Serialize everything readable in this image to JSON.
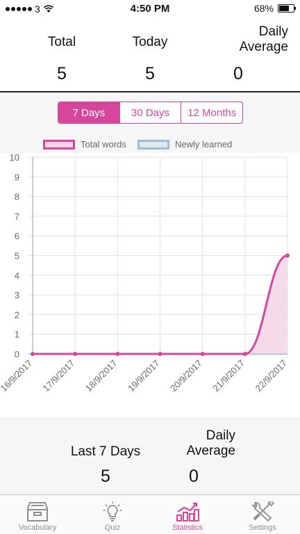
{
  "status_bar": {
    "carrier": "3",
    "time": "4:50 PM",
    "battery": "68%",
    "battery_level": 0.68
  },
  "summary": {
    "total_label": "Total",
    "total_value": "5",
    "today_label": "Today",
    "today_value": "5",
    "daily_avg_label_line1": "Daily",
    "daily_avg_label_line2": "Average",
    "daily_avg_value": "0"
  },
  "range_tabs": {
    "items": [
      "7 Days",
      "30 Days",
      "12 Months"
    ],
    "selected": "7 Days"
  },
  "colors": {
    "accent": "#d4479c",
    "total_fill": "#f3d3e6",
    "newly_border": "#9fbcd0",
    "newly_fill": "#dfe9ef"
  },
  "chart_data": {
    "type": "line",
    "x": [
      "16/9/2017",
      "17/9/2017",
      "18/9/2017",
      "19/9/2017",
      "20/9/2017",
      "21/9/2017",
      "22/9/2017"
    ],
    "series": [
      {
        "name": "Total words",
        "values": [
          0,
          0,
          0,
          0,
          0,
          0,
          5
        ]
      },
      {
        "name": "Newly learned",
        "values": [
          0,
          0,
          0,
          0,
          0,
          0,
          0
        ]
      }
    ],
    "ylim": [
      0,
      10
    ],
    "yticks": [
      "0",
      "1",
      "2",
      "3",
      "4",
      "5",
      "6",
      "7",
      "8",
      "9",
      "10"
    ],
    "legend": "top",
    "grid": true
  },
  "last_period": {
    "label": "Last 7 Days",
    "value": "5",
    "daily_avg_label_line1": "Daily",
    "daily_avg_label_line2": "Average",
    "daily_avg_value": "0"
  },
  "tab_bar": {
    "items": [
      {
        "label": "Vocabulary",
        "icon": "drawer-icon"
      },
      {
        "label": "Quiz",
        "icon": "lightbulb-icon"
      },
      {
        "label": "Statistics",
        "icon": "chart-icon"
      },
      {
        "label": "Settings",
        "icon": "wrench-screwdriver-icon"
      }
    ],
    "selected": "Statistics"
  }
}
